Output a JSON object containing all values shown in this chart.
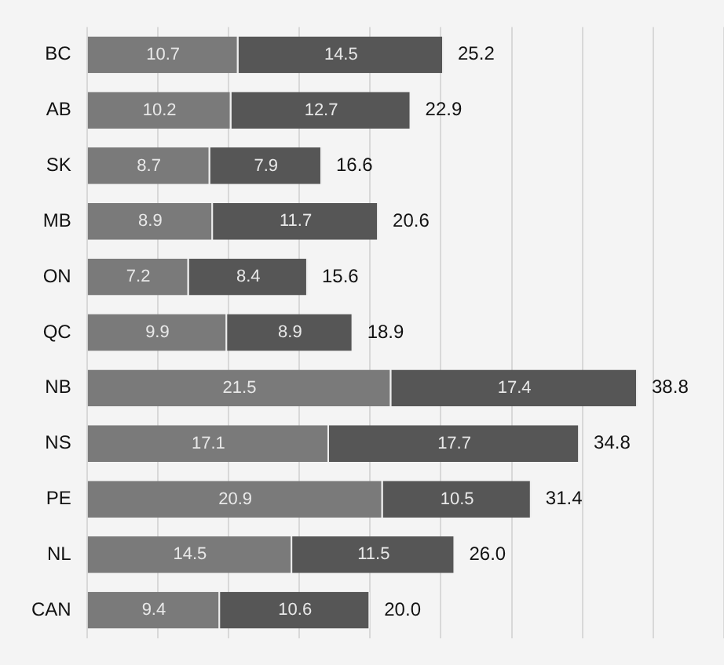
{
  "chart_data": {
    "type": "bar",
    "orientation": "horizontal",
    "stacked": true,
    "categories": [
      "BC",
      "AB",
      "SK",
      "MB",
      "ON",
      "QC",
      "NB",
      "NS",
      "PE",
      "NL",
      "CAN"
    ],
    "series": [
      {
        "color": "#7a7a7a",
        "values": [
          10.7,
          10.2,
          8.7,
          8.9,
          7.2,
          9.9,
          21.5,
          17.1,
          20.9,
          14.5,
          9.4
        ]
      },
      {
        "color": "#565656",
        "values": [
          14.5,
          12.7,
          7.9,
          11.7,
          8.4,
          8.9,
          17.4,
          17.7,
          10.5,
          11.5,
          10.6
        ]
      }
    ],
    "totals": [
      "25.2",
      "22.9",
      "16.6",
      "20.6",
      "15.6",
      "18.9",
      "38.8",
      "34.8",
      "31.4",
      "26.0",
      "20.0"
    ],
    "data_labels": true,
    "grid": "x",
    "tick_labels": "y",
    "legend": false,
    "xlim": [
      0,
      45
    ],
    "xticks": [
      {
        "value": 0,
        "label": null
      },
      {
        "value": 5,
        "label": null
      },
      {
        "value": 10,
        "label": null
      },
      {
        "value": 15,
        "label": null
      },
      {
        "value": 20,
        "label": null
      },
      {
        "value": 25,
        "label": null
      },
      {
        "value": 30,
        "label": null
      },
      {
        "value": 35,
        "label": null
      },
      {
        "value": 40,
        "label": null
      },
      {
        "value": 45,
        "label": null
      }
    ]
  }
}
